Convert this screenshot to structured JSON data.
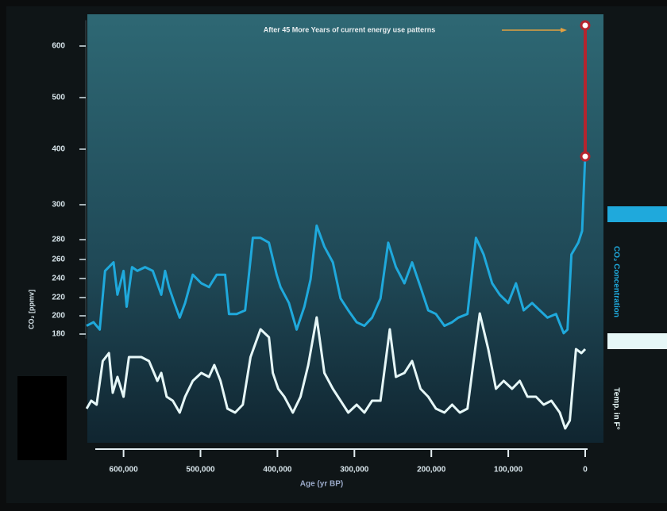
{
  "chart_data": {
    "type": "line",
    "annotation": "After 45 More Years of current energy use patterns",
    "y_label": "CO₂ [ppmv]",
    "x_label": "Age (yr BP)",
    "xlim": [
      645000,
      0
    ],
    "xticks": [
      {
        "value": 600000,
        "label": "600,000"
      },
      {
        "value": 500000,
        "label": "500,000"
      },
      {
        "value": 400000,
        "label": "400,000"
      },
      {
        "value": 300000,
        "label": "300,000"
      },
      {
        "value": 200000,
        "label": "200,000"
      },
      {
        "value": 100000,
        "label": "100,000"
      },
      0
    ],
    "ylim": [
      175,
      650
    ],
    "yticks": [
      180,
      200,
      220,
      240,
      260,
      280,
      300,
      400,
      500,
      600
    ],
    "y2lim": [
      -8,
      8
    ],
    "series": [
      {
        "name": "CO₂ Concentration",
        "color": "#1fa9dc",
        "x": [
          648000,
          639000,
          631000,
          624000,
          613000,
          608000,
          600000,
          596000,
          589000,
          582000,
          572000,
          562000,
          551000,
          546000,
          541000,
          534000,
          527000,
          520000,
          510000,
          499000,
          489000,
          479000,
          468000,
          463000,
          453000,
          442000,
          432000,
          422000,
          411000,
          401000,
          396000,
          385000,
          375000,
          365000,
          357000,
          349000,
          339000,
          328000,
          318000,
          308000,
          297000,
          287000,
          277000,
          266000,
          256000,
          246000,
          235000,
          225000,
          214000,
          204000,
          194000,
          183000,
          173000,
          165000,
          153000,
          142000,
          132000,
          121000,
          111000,
          100000,
          90000,
          80000,
          69000,
          59000,
          49000,
          38000,
          28000,
          23000,
          18000,
          9000,
          4000,
          0
        ],
        "values": [
          189,
          193,
          185,
          248,
          257,
          223,
          248,
          210,
          252,
          248,
          252,
          248,
          223,
          248,
          231,
          214,
          198,
          214,
          244,
          235,
          231,
          244,
          244,
          202,
          202,
          206,
          281,
          281,
          277,
          244,
          231,
          214,
          185,
          210,
          239,
          288,
          273,
          257,
          219,
          206,
          193,
          189,
          198,
          219,
          277,
          252,
          235,
          257,
          231,
          206,
          202,
          189,
          193,
          198,
          202,
          281,
          265,
          235,
          223,
          214,
          235,
          206,
          214,
          206,
          198,
          202,
          181,
          185,
          265,
          277,
          285,
          390
        ]
      },
      {
        "name": "Temp. in F°",
        "color": "#e6f7f7",
        "axis": "y2",
        "x": [
          648000,
          642000,
          635000,
          627000,
          619000,
          614000,
          608000,
          600000,
          593000,
          586000,
          577000,
          567000,
          556000,
          551000,
          544000,
          536000,
          527000,
          520000,
          510000,
          499000,
          489000,
          482000,
          474000,
          465000,
          455000,
          445000,
          435000,
          422000,
          411000,
          406000,
          399000,
          391000,
          380000,
          370000,
          360000,
          349000,
          339000,
          328000,
          318000,
          308000,
          297000,
          287000,
          277000,
          266000,
          254000,
          246000,
          235000,
          225000,
          214000,
          204000,
          194000,
          183000,
          173000,
          163000,
          153000,
          137000,
          126000,
          116000,
          106000,
          95000,
          85000,
          75000,
          64000,
          54000,
          44000,
          33000,
          26000,
          20000,
          12000,
          5000,
          0
        ],
        "values": [
          -5,
          -4,
          -4.5,
          1,
          2,
          -3,
          -1,
          -3.5,
          1.5,
          1.5,
          1.5,
          1,
          -1.5,
          -0.5,
          -3.5,
          -4,
          -5.5,
          -3.5,
          -1.5,
          -0.5,
          -1,
          0.5,
          -1.5,
          -5,
          -5.5,
          -4.5,
          1.5,
          5,
          4,
          -0.5,
          -2.5,
          -3.5,
          -5.5,
          -3.5,
          0.5,
          6.5,
          -0.5,
          -2.5,
          -4,
          -5.5,
          -4.5,
          -5.5,
          -4,
          -4,
          5,
          -1,
          -0.5,
          1,
          -2.5,
          -3.5,
          -5,
          -5.5,
          -4.5,
          -5.5,
          -5,
          7,
          2.5,
          -2.5,
          -1.5,
          -2.5,
          -1.5,
          -3.5,
          -3.5,
          -4.5,
          -4,
          -5.5,
          -7.5,
          -6.5,
          2.5,
          2,
          2.5
        ]
      }
    ],
    "projection": {
      "x": [
        0,
        0
      ],
      "values": [
        387,
        640
      ],
      "color": "#b5242e"
    }
  }
}
